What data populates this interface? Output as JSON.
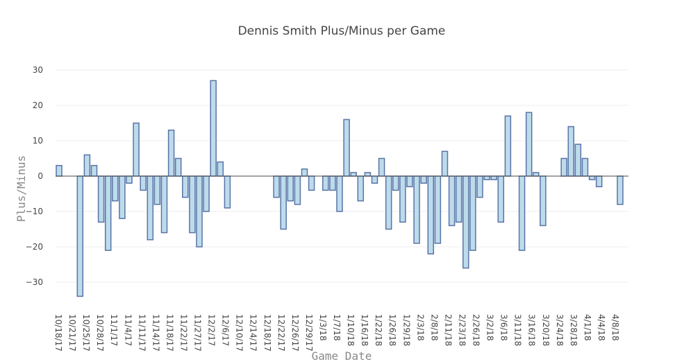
{
  "chart_data": {
    "type": "bar",
    "title": "Dennis Smith Plus/Minus per Game",
    "xlabel": "Game Date",
    "ylabel": "Plus/Minus",
    "ylim": [
      -37,
      33
    ],
    "yticks": [
      30,
      20,
      10,
      0,
      -10,
      -20,
      -30
    ],
    "ytick_labels": [
      "30",
      "20",
      "10",
      "0",
      "−10",
      "−20",
      "−30"
    ],
    "x_tick_labels": [
      "10/18/17",
      "10/21/17",
      "10/25/17",
      "10/28/17",
      "11/1/17",
      "11/4/17",
      "11/11/17",
      "11/14/17",
      "11/18/17",
      "11/22/17",
      "11/27/17",
      "12/2/17",
      "12/6/17",
      "12/10/17",
      "12/14/17",
      "12/18/17",
      "12/22/17",
      "12/26/17",
      "12/29/17",
      "1/3/18",
      "1/7/18",
      "1/10/18",
      "1/16/18",
      "1/22/18",
      "1/26/18",
      "1/29/18",
      "2/3/18",
      "2/8/18",
      "2/11/18",
      "2/23/18",
      "2/26/18",
      "3/2/18",
      "3/6/18",
      "3/11/18",
      "3/16/18",
      "3/20/18",
      "3/24/18",
      "3/28/18",
      "4/1/18",
      "4/4/18",
      "4/8/18"
    ],
    "bar_color": "#bcdcec",
    "bar_edge_color": "#5a73a6",
    "grid": true,
    "legend": false,
    "bars": [
      {
        "slot": 0,
        "value": 3
      },
      {
        "slot": 3,
        "value": -34
      },
      {
        "slot": 4,
        "value": 6
      },
      {
        "slot": 5,
        "value": 3
      },
      {
        "slot": 6,
        "value": -13
      },
      {
        "slot": 7,
        "value": -21
      },
      {
        "slot": 8,
        "value": -7
      },
      {
        "slot": 9,
        "value": -12
      },
      {
        "slot": 10,
        "value": -2
      },
      {
        "slot": 11,
        "value": 15
      },
      {
        "slot": 12,
        "value": -4
      },
      {
        "slot": 13,
        "value": -18
      },
      {
        "slot": 14,
        "value": -8
      },
      {
        "slot": 15,
        "value": -16
      },
      {
        "slot": 16,
        "value": 13
      },
      {
        "slot": 17,
        "value": 5
      },
      {
        "slot": 18,
        "value": -6
      },
      {
        "slot": 19,
        "value": -16
      },
      {
        "slot": 20,
        "value": -20
      },
      {
        "slot": 21,
        "value": -10
      },
      {
        "slot": 22,
        "value": 27
      },
      {
        "slot": 23,
        "value": 4
      },
      {
        "slot": 24,
        "value": -9
      },
      {
        "slot": 31,
        "value": -6
      },
      {
        "slot": 32,
        "value": -15
      },
      {
        "slot": 33,
        "value": -7
      },
      {
        "slot": 34,
        "value": -8
      },
      {
        "slot": 35,
        "value": 2
      },
      {
        "slot": 36,
        "value": -4
      },
      {
        "slot": 38,
        "value": -4
      },
      {
        "slot": 39,
        "value": -4
      },
      {
        "slot": 40,
        "value": -10
      },
      {
        "slot": 41,
        "value": 16
      },
      {
        "slot": 42,
        "value": 1
      },
      {
        "slot": 43,
        "value": -7
      },
      {
        "slot": 44,
        "value": 1
      },
      {
        "slot": 45,
        "value": -2
      },
      {
        "slot": 46,
        "value": 5
      },
      {
        "slot": 47,
        "value": -15
      },
      {
        "slot": 48,
        "value": -4
      },
      {
        "slot": 49,
        "value": -13
      },
      {
        "slot": 50,
        "value": -3
      },
      {
        "slot": 51,
        "value": -19
      },
      {
        "slot": 52,
        "value": -2
      },
      {
        "slot": 53,
        "value": -22
      },
      {
        "slot": 54,
        "value": -19
      },
      {
        "slot": 55,
        "value": 7
      },
      {
        "slot": 56,
        "value": -14
      },
      {
        "slot": 57,
        "value": -13
      },
      {
        "slot": 58,
        "value": -26
      },
      {
        "slot": 59,
        "value": -21
      },
      {
        "slot": 60,
        "value": -6
      },
      {
        "slot": 61,
        "value": -1
      },
      {
        "slot": 62,
        "value": -1
      },
      {
        "slot": 63,
        "value": -13
      },
      {
        "slot": 64,
        "value": 17
      },
      {
        "slot": 66,
        "value": -21
      },
      {
        "slot": 67,
        "value": 18
      },
      {
        "slot": 68,
        "value": 1
      },
      {
        "slot": 69,
        "value": -14
      },
      {
        "slot": 72,
        "value": 5
      },
      {
        "slot": 73,
        "value": 14
      },
      {
        "slot": 74,
        "value": 9
      },
      {
        "slot": 75,
        "value": 5
      },
      {
        "slot": 76,
        "value": -1
      },
      {
        "slot": 77,
        "value": -3
      },
      {
        "slot": 80,
        "value": -8
      }
    ]
  }
}
